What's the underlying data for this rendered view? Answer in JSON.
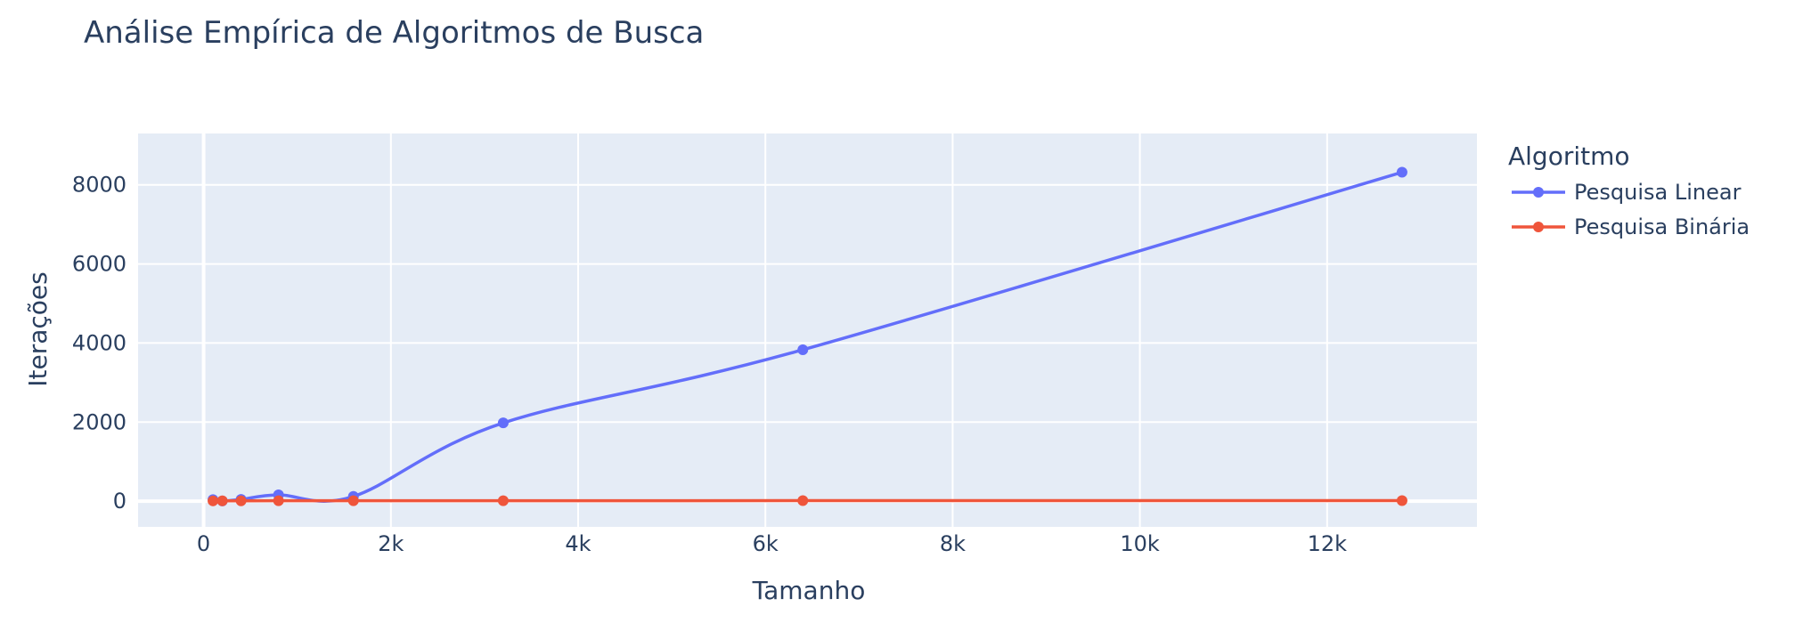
{
  "chart_data": {
    "type": "line",
    "title": "Análise Empírica de Algoritmos de Busca",
    "xlabel": "Tamanho",
    "ylabel": "Iterações",
    "xlim": [
      -700,
      13600
    ],
    "ylim": [
      -650,
      9300
    ],
    "x_ticks": [
      0,
      2000,
      4000,
      6000,
      8000,
      10000,
      12000
    ],
    "x_tick_labels": [
      "0",
      "2k",
      "4k",
      "6k",
      "8k",
      "10k",
      "12k"
    ],
    "y_ticks": [
      0,
      2000,
      4000,
      6000,
      8000
    ],
    "y_tick_labels": [
      "0",
      "2000",
      "4000",
      "6000",
      "8000"
    ],
    "grid": true,
    "line_shape": "spline",
    "legend": {
      "title": "Algoritmo",
      "position": "right"
    },
    "series": [
      {
        "name": "Pesquisa Linear",
        "color": "#636efa",
        "x": [
          100,
          200,
          400,
          800,
          1600,
          3200,
          6400,
          12800
        ],
        "y": [
          40,
          5,
          45,
          160,
          120,
          1980,
          3830,
          8320
        ]
      },
      {
        "name": "Pesquisa Binária",
        "color": "#ef553b",
        "x": [
          100,
          200,
          400,
          800,
          1600,
          3200,
          6400,
          12800
        ],
        "y": [
          7,
          8,
          9,
          10,
          11,
          12,
          13,
          14
        ]
      }
    ]
  }
}
